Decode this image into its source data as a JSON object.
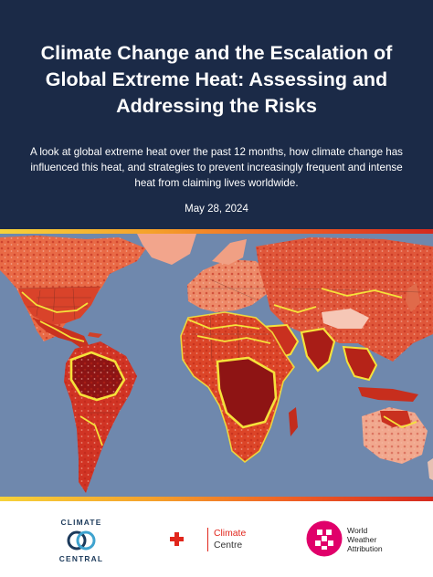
{
  "header": {
    "title": "Climate Change and the Escalation of Global Extreme Heat: Assessing and Addressing the Risks",
    "subtitle": "A look at global extreme heat over the past 12 months, how climate change has influenced this heat, and strategies to prevent increasingly frequent and intense heat from claiming lives worldwide.",
    "date": "May 28, 2024"
  },
  "colors": {
    "header_bg": "#1b2a47",
    "ocean": "#6f88ad",
    "heat_light": "#f3b3a0",
    "heat_mid": "#e2512c",
    "heat_dark": "#8e1414",
    "highlight_border": "#f5e23a",
    "accent_red": "#e1261c",
    "wwa_pink": "#e0006a"
  },
  "map": {
    "icon": "world-heat-map"
  },
  "footer": {
    "logos": [
      {
        "name": "climate-central-logo",
        "line1": "CLIMATE",
        "line2": "CENTRAL"
      },
      {
        "name": "red-cross-red-crescent-climate-centre-logo",
        "line1": "Climate",
        "line2": "Centre"
      },
      {
        "name": "world-weather-attribution-logo",
        "line1": "World",
        "line2": "Weather",
        "line3": "Attribution"
      }
    ]
  }
}
